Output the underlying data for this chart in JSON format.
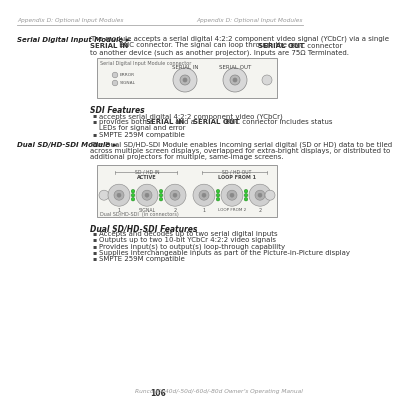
{
  "header_left": "Appendix D: Optional Input Modules",
  "header_right": "Appendix D: Optional Input Modules",
  "footer_page": "106",
  "footer_right": "Runco VX-40d/-50d/-60d/-80d Owner’s Operating Manual",
  "section1_label": "Serial Digital Input Module ►",
  "sdi_title": "SDI Features",
  "sdi_b1": "accepts serial digital 4:2:2 component video (YCbCr)",
  "sdi_b2a": "provides both a ",
  "sdi_b2b": "SERIAL IN",
  "sdi_b2c": " and a ",
  "sdi_b2d": "SERIAL OUT",
  "sdi_b2e": " BNC connector includes status",
  "sdi_b2f": "LEDs for signal and error",
  "sdi_b3": "SMPTE 259M compatible",
  "section2_label": "Dual SD/HD-SDI Module ►",
  "dual_title": "Dual SD/HD-SDI Features",
  "dual_bullets": [
    "Accepts and decodes up to two serial digital inputs",
    "Outputs up to two 10-bit YCbCr 4:2:2 video signals",
    "Provides input(s) to output(s) loop-through capability",
    "Supplies interchangeable inputs as part of the Picture-in-Picture display",
    "SMPTE 259M compatible"
  ],
  "box1_label": "Serial Digital Input Module connector",
  "box2_label": "Dual SD/HD-SDI  (in connectors)",
  "body1_l1": "The module accepts a serial digital 4:2:2 component video signal (YCbCr) via a single",
  "body1_l2a": "SERIAL IN",
  "body1_l2b": " BNC connector. The signal can loop through the ",
  "body1_l2c": "SERIAL OUT",
  "body1_l2d": " BNC connector",
  "body1_l3": "to another device (such as another projector). Inputs are 75Ω Terminated.",
  "body2_l1": "The Dual SD/HD-SDI Module enables incoming serial digital (SD or HD) data to be tiled",
  "body2_l2": "across multiple screen displays, overlapped for extra-bright displays, or distributed to",
  "body2_l3": "additional projectors for multiple, same-image screens."
}
